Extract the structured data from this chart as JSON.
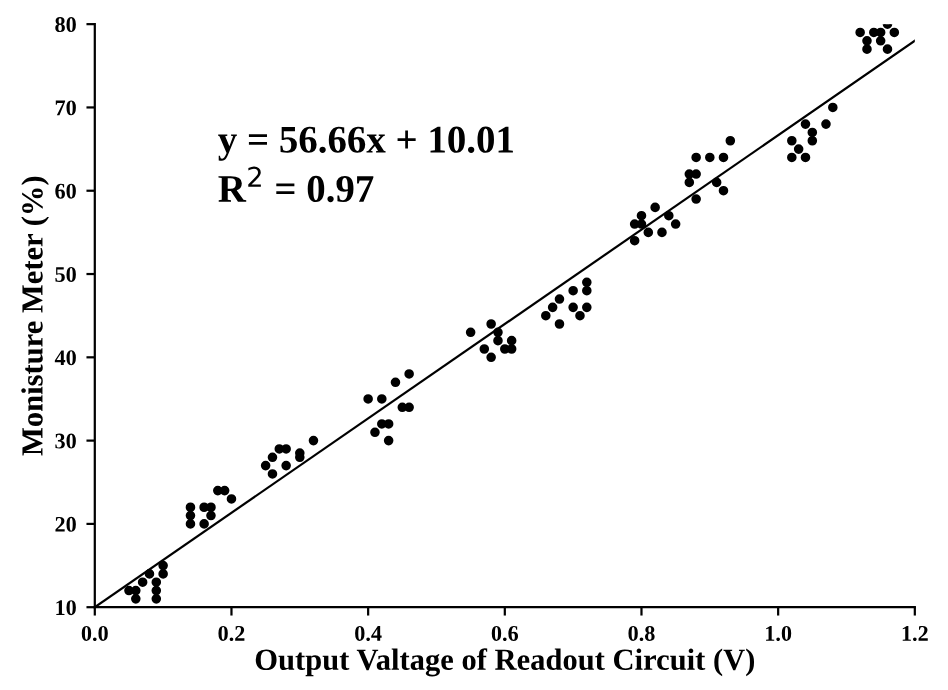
{
  "chart_data": {
    "type": "scatter",
    "xlabel": "Output Valtage of Readout Circuit (V)",
    "ylabel": "Monisture Meter (%)",
    "annotations": [
      "y = 56.66x + 10.01",
      "R$^{2}$ = 0.97"
    ],
    "xlim": [
      0,
      1.2
    ],
    "ylim": [
      10,
      80
    ],
    "xticks": [
      {
        "value": 0,
        "label": "0.0"
      },
      {
        "value": 0.2,
        "label": "0.2"
      },
      {
        "value": 0.4,
        "label": "0.4"
      },
      {
        "value": 0.6,
        "label": "0.6"
      },
      {
        "value": 0.8,
        "label": "0.8"
      },
      {
        "value": 1.0,
        "label": "1.0"
      },
      {
        "value": 1.2,
        "label": "1.2"
      }
    ],
    "yticks": [
      10,
      20,
      30,
      40,
      50,
      60,
      70,
      80
    ],
    "grid": false,
    "legend": false,
    "series": [
      {
        "color": "#000000",
        "marker": "circle",
        "x": [
          0.05,
          0.06,
          0.06,
          0.07,
          0.08,
          0.09,
          0.09,
          0.09,
          0.1,
          0.1,
          0.14,
          0.14,
          0.14,
          0.16,
          0.16,
          0.17,
          0.17,
          0.18,
          0.19,
          0.2,
          0.25,
          0.26,
          0.26,
          0.27,
          0.28,
          0.28,
          0.3,
          0.3,
          0.32,
          0.4,
          0.41,
          0.42,
          0.42,
          0.43,
          0.43,
          0.44,
          0.45,
          0.46,
          0.46,
          0.55,
          0.57,
          0.58,
          0.58,
          0.59,
          0.59,
          0.6,
          0.61,
          0.61,
          0.66,
          0.67,
          0.68,
          0.68,
          0.7,
          0.7,
          0.71,
          0.72,
          0.72,
          0.72,
          0.79,
          0.79,
          0.8,
          0.8,
          0.81,
          0.82,
          0.83,
          0.84,
          0.85,
          0.87,
          0.87,
          0.88,
          0.88,
          0.88,
          0.9,
          0.91,
          0.92,
          0.92,
          0.93,
          1.02,
          1.02,
          1.03,
          1.04,
          1.04,
          1.05,
          1.05,
          1.07,
          1.08,
          1.12,
          1.13,
          1.13,
          1.14,
          1.15,
          1.15,
          1.16,
          1.16,
          1.17
        ],
        "values": [
          12,
          11,
          12,
          13,
          14,
          11,
          12,
          13,
          14,
          15,
          20,
          21,
          22,
          20,
          22,
          21,
          22,
          24,
          24,
          23,
          27,
          26,
          28,
          29,
          29,
          27,
          28,
          28.5,
          30,
          35,
          31,
          35,
          32,
          32,
          30,
          37,
          34,
          34,
          38,
          43,
          41,
          44,
          40,
          43,
          42,
          41,
          41,
          42,
          45,
          46,
          47,
          44,
          48,
          46,
          45,
          46,
          48,
          49,
          54,
          56,
          57,
          56,
          55,
          58,
          55,
          57,
          56,
          61,
          62,
          62,
          64,
          59,
          64,
          61,
          64,
          60,
          66,
          66,
          64,
          65,
          68,
          64,
          67,
          66,
          68,
          70,
          79,
          77,
          78,
          79,
          78,
          79,
          80,
          77,
          79
        ]
      },
      {
        "type": "line",
        "color": "#000000",
        "x": [
          0,
          1.2
        ],
        "values": [
          10.0,
          78.0
        ],
        "marker": "none",
        "line_style": "solid"
      }
    ]
  }
}
